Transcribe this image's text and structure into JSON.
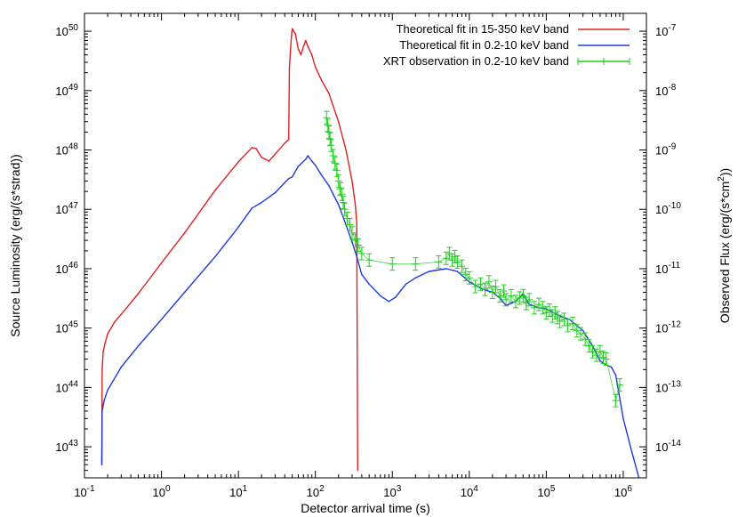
{
  "chart_data": {
    "type": "line",
    "title": "",
    "xlabel": "Detector arrival time (s)",
    "ylabel": "Source Luminosity (erg/(s*strad))",
    "y2label_parts": [
      "Observed Flux (erg/(s*cm",
      "2",
      "))"
    ],
    "xscale": "log",
    "yscale": "log",
    "y2scale": "log",
    "xlim": [
      0.1,
      2000000
    ],
    "ylim": [
      3e+42,
      2e+50
    ],
    "y2lim": [
      3e-15,
      2e-07
    ],
    "grid": false,
    "legend_position": "top-right",
    "x_ticks": [
      {
        "base": "10",
        "exp": "-1",
        "value": 0.1
      },
      {
        "base": "10",
        "exp": "0",
        "value": 1
      },
      {
        "base": "10",
        "exp": "1",
        "value": 10
      },
      {
        "base": "10",
        "exp": "2",
        "value": 100
      },
      {
        "base": "10",
        "exp": "3",
        "value": 1000
      },
      {
        "base": "10",
        "exp": "4",
        "value": 10000
      },
      {
        "base": "10",
        "exp": "5",
        "value": 100000
      },
      {
        "base": "10",
        "exp": "6",
        "value": 1000000
      }
    ],
    "y_ticks": [
      {
        "base": "10",
        "exp": "43",
        "value": 1e+43
      },
      {
        "base": "10",
        "exp": "44",
        "value": 1e+44
      },
      {
        "base": "10",
        "exp": "45",
        "value": 1e+45
      },
      {
        "base": "10",
        "exp": "46",
        "value": 1e+46
      },
      {
        "base": "10",
        "exp": "47",
        "value": 1e+47
      },
      {
        "base": "10",
        "exp": "48",
        "value": 1e+48
      },
      {
        "base": "10",
        "exp": "49",
        "value": 1e+49
      },
      {
        "base": "10",
        "exp": "50",
        "value": 1e+50
      }
    ],
    "y2_ticks": [
      {
        "base": "10",
        "exp": "-14",
        "value": 1e-14
      },
      {
        "base": "10",
        "exp": "-13",
        "value": 1e-13
      },
      {
        "base": "10",
        "exp": "-12",
        "value": 1e-12
      },
      {
        "base": "10",
        "exp": "-11",
        "value": 1e-11
      },
      {
        "base": "10",
        "exp": "-10",
        "value": 1e-10
      },
      {
        "base": "10",
        "exp": "-9",
        "value": 1e-09
      },
      {
        "base": "10",
        "exp": "-8",
        "value": 1e-08
      },
      {
        "base": "10",
        "exp": "-7",
        "value": 1e-07
      }
    ],
    "series": [
      {
        "name": "Theoretical fit in 15-350 keV band",
        "color": "#e02020",
        "style": "line",
        "points": [
          [
            0.168,
            5e+42
          ],
          [
            0.17,
            2e+44
          ],
          [
            0.175,
            4e+44
          ],
          [
            0.185,
            5.5e+44
          ],
          [
            0.2,
            8e+44
          ],
          [
            0.25,
            1.3e+45
          ],
          [
            0.3,
            1.7e+45
          ],
          [
            0.5,
            3.8e+45
          ],
          [
            1,
            1.25e+46
          ],
          [
            2,
            4e+46
          ],
          [
            5,
            2.1e+47
          ],
          [
            10,
            6.3e+47
          ],
          [
            15,
            1.1e+48
          ],
          [
            17,
            1.05e+48
          ],
          [
            20,
            7.5e+47
          ],
          [
            25,
            6.5e+47
          ],
          [
            30,
            8.5e+47
          ],
          [
            40,
            1.3e+48
          ],
          [
            45,
            1.5e+48
          ],
          [
            46,
            2.5e+49
          ],
          [
            48,
            6e+49
          ],
          [
            50,
            1.1e+50
          ],
          [
            55,
            9e+49
          ],
          [
            60,
            5e+49
          ],
          [
            65,
            4e+49
          ],
          [
            70,
            5.5e+49
          ],
          [
            75,
            7e+49
          ],
          [
            80,
            5.5e+49
          ],
          [
            90,
            4e+49
          ],
          [
            100,
            2.5e+49
          ],
          [
            120,
            1.5e+49
          ],
          [
            150,
            9e+48
          ],
          [
            200,
            3e+48
          ],
          [
            250,
            1e+48
          ],
          [
            300,
            3e+47
          ],
          [
            330,
            1.2e+47
          ],
          [
            345,
            6e+46
          ],
          [
            355,
            4e+42
          ]
        ]
      },
      {
        "name": "Theoretical fit in 0.2-10 keV band",
        "color": "#1e3adc",
        "style": "line",
        "points": [
          [
            0.168,
            5e+42
          ],
          [
            0.17,
            4e+43
          ],
          [
            0.18,
            6e+43
          ],
          [
            0.2,
            9e+43
          ],
          [
            0.3,
            2.2e+44
          ],
          [
            0.5,
            5e+44
          ],
          [
            1,
            1.4e+45
          ],
          [
            2,
            4e+45
          ],
          [
            5,
            1.6e+46
          ],
          [
            10,
            5e+46
          ],
          [
            15,
            1.05e+47
          ],
          [
            20,
            1.3e+47
          ],
          [
            30,
            1.9e+47
          ],
          [
            45,
            3.3e+47
          ],
          [
            50,
            3.5e+47
          ],
          [
            60,
            5.3e+47
          ],
          [
            75,
            7e+47
          ],
          [
            80,
            8e+47
          ],
          [
            90,
            6.5e+47
          ],
          [
            100,
            5.5e+47
          ],
          [
            120,
            3.8e+47
          ],
          [
            150,
            2.5e+47
          ],
          [
            200,
            1.2e+47
          ],
          [
            250,
            5.5e+46
          ],
          [
            300,
            2.8e+46
          ],
          [
            350,
            1.5e+46
          ],
          [
            400,
            8e+45
          ],
          [
            500,
            5.5e+45
          ],
          [
            700,
            3.5e+45
          ],
          [
            900,
            2.8e+45
          ],
          [
            1100,
            3.3e+45
          ],
          [
            1500,
            5.5e+45
          ],
          [
            2000,
            7e+45
          ],
          [
            3000,
            9e+45
          ],
          [
            5000,
            1e+46
          ],
          [
            7000,
            9e+45
          ],
          [
            10000,
            6e+45
          ],
          [
            15000,
            4.5e+45
          ],
          [
            20000,
            4e+45
          ],
          [
            25000,
            3.2e+45
          ],
          [
            30000,
            2.4e+45
          ],
          [
            40000,
            2.8e+45
          ],
          [
            50000,
            3.8e+45
          ],
          [
            60000,
            2.5e+45
          ],
          [
            80000,
            2.2e+45
          ],
          [
            100000,
            2.1e+45
          ],
          [
            150000,
            1.6e+45
          ],
          [
            200000,
            1.4e+45
          ],
          [
            300000,
            9e+44
          ],
          [
            400000,
            5e+44
          ],
          [
            500000,
            2.8e+44
          ],
          [
            600000,
            2.4e+44
          ],
          [
            700000,
            2.2e+44
          ],
          [
            800000,
            1.6e+44
          ],
          [
            1000000,
            3e+43
          ],
          [
            1300000,
            8e+42
          ],
          [
            1600000,
            3e+42
          ]
        ]
      },
      {
        "name": "XRT observation in 0.2-10 keV band",
        "color": "#22cc22",
        "style": "errorbars",
        "points": [
          [
            140,
            3.5e+48
          ],
          [
            145,
            2.6e+48
          ],
          [
            150,
            2e+48
          ],
          [
            155,
            1.5e+48
          ],
          [
            160,
            1.2e+48
          ],
          [
            170,
            8e+47
          ],
          [
            180,
            6e+47
          ],
          [
            190,
            4.5e+47
          ],
          [
            200,
            3e+47
          ],
          [
            210,
            2.2e+47
          ],
          [
            220,
            1.8e+47
          ],
          [
            230,
            1.3e+47
          ],
          [
            240,
            1e+47
          ],
          [
            260,
            7e+46
          ],
          [
            280,
            5.5e+46
          ],
          [
            300,
            4e+46
          ],
          [
            330,
            3e+46
          ],
          [
            360,
            2.5e+46
          ],
          [
            400,
            1.8e+46
          ],
          [
            500,
            1.4e+46
          ],
          [
            1000,
            1.2e+46
          ],
          [
            2000,
            1.2e+46
          ],
          [
            4000,
            1.3e+46
          ],
          [
            5000,
            1.5e+46
          ],
          [
            5500,
            1.8e+46
          ],
          [
            6000,
            1.4e+46
          ],
          [
            6500,
            1.6e+46
          ],
          [
            7000,
            1.3e+46
          ],
          [
            8000,
            1.1e+46
          ],
          [
            9000,
            8e+45
          ],
          [
            10000,
            7e+45
          ],
          [
            12000,
            5e+45
          ],
          [
            14000,
            5.5e+45
          ],
          [
            16000,
            4.5e+45
          ],
          [
            18000,
            6e+45
          ],
          [
            20000,
            4e+45
          ],
          [
            22000,
            5e+45
          ],
          [
            25000,
            3.5e+45
          ],
          [
            28000,
            4.2e+45
          ],
          [
            30000,
            3e+45
          ],
          [
            35000,
            3.5e+45
          ],
          [
            40000,
            2.8e+45
          ],
          [
            45000,
            3.2e+45
          ],
          [
            50000,
            3.5e+45
          ],
          [
            55000,
            2.6e+45
          ],
          [
            60000,
            3e+45
          ],
          [
            70000,
            2.2e+45
          ],
          [
            80000,
            2.5e+45
          ],
          [
            90000,
            2.2e+45
          ],
          [
            100000,
            1.8e+45
          ],
          [
            110000,
            2e+45
          ],
          [
            120000,
            1.6e+45
          ],
          [
            130000,
            1.8e+45
          ],
          [
            140000,
            1.5e+45
          ],
          [
            150000,
            1.3e+45
          ],
          [
            170000,
            1.4e+45
          ],
          [
            190000,
            1.1e+45
          ],
          [
            220000,
            1.2e+45
          ],
          [
            250000,
            9e+44
          ],
          [
            280000,
            8e+44
          ],
          [
            320000,
            6.5e+44
          ],
          [
            360000,
            5e+44
          ],
          [
            400000,
            4e+44
          ],
          [
            450000,
            3.5e+44
          ],
          [
            500000,
            4e+44
          ],
          [
            550000,
            3.2e+44
          ],
          [
            600000,
            3e+44
          ],
          [
            800000,
            6e+43
          ],
          [
            900000,
            1.1e+44
          ]
        ]
      }
    ]
  }
}
